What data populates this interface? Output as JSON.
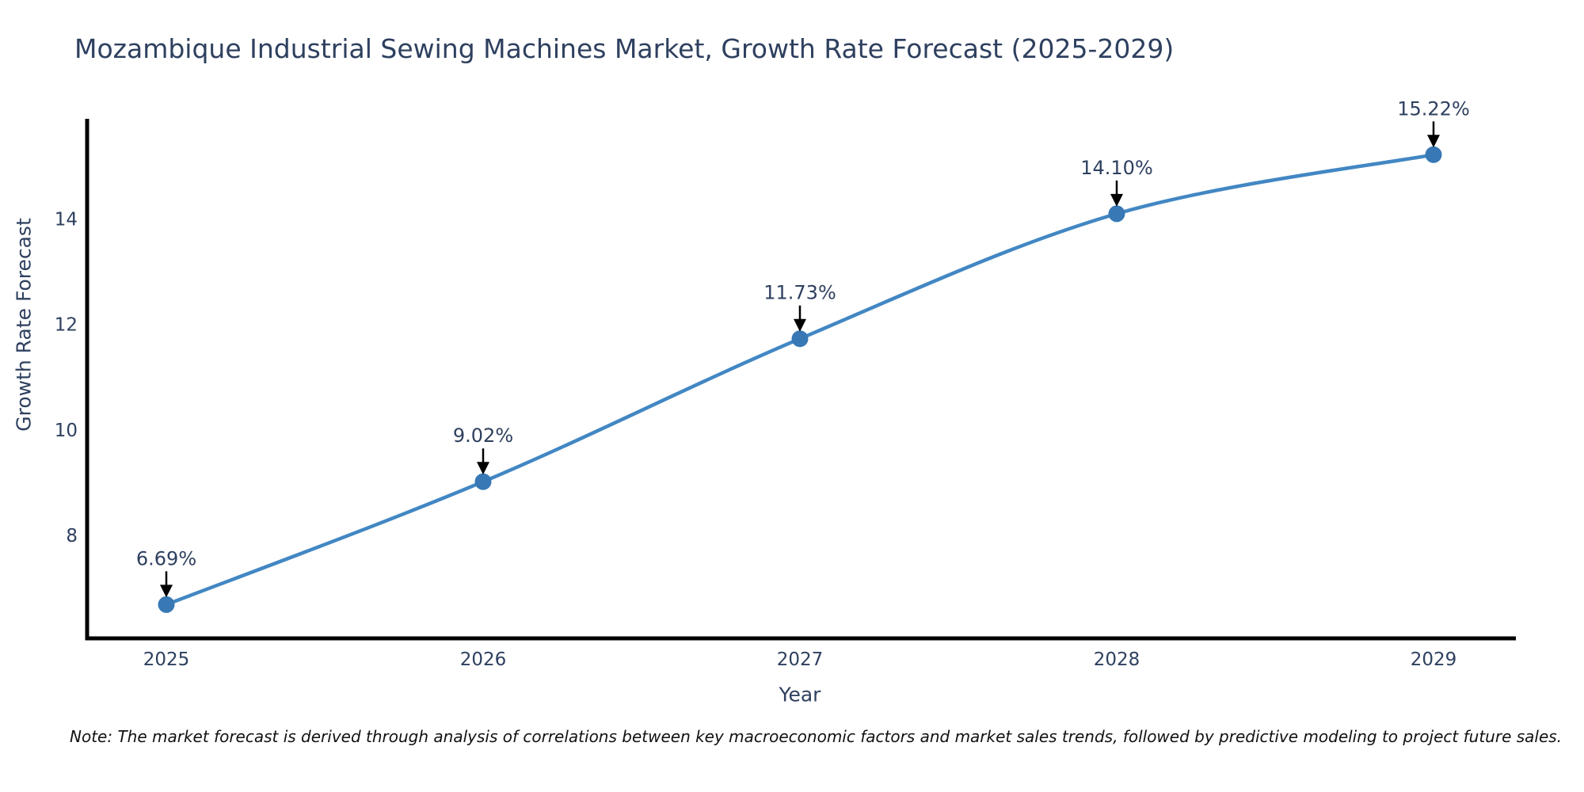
{
  "chart_data": {
    "type": "line",
    "title": "Mozambique Industrial Sewing Machines Market, Growth Rate Forecast (2025-2029)",
    "xlabel": "Year",
    "ylabel": "Growth Rate Forecast",
    "x": [
      2025,
      2026,
      2027,
      2028,
      2029
    ],
    "values": [
      6.69,
      9.02,
      11.73,
      14.1,
      15.22
    ],
    "point_labels": [
      "6.69%",
      "9.02%",
      "11.73%",
      "14.10%",
      "15.22%"
    ],
    "xticks": [
      "2025",
      "2026",
      "2027",
      "2028",
      "2029"
    ],
    "yticks": [
      8,
      10,
      12,
      14
    ],
    "xlim": [
      2024.75,
      2029.25
    ],
    "ylim": [
      6.05,
      15.9
    ],
    "grid": false,
    "legend": "none",
    "line_shape": "spline",
    "colors": {
      "line": "#4287c3",
      "marker": "#3778b5",
      "text": "#2e405f",
      "axis_spine": "#000000",
      "annotation_arrow": "#000000",
      "note_text": "#111111",
      "background": "#ffffff"
    },
    "note": "Note: The market forecast is derived through analysis of correlations between key macroeconomic factors and market sales trends, followed by predictive modeling to project future sales."
  }
}
